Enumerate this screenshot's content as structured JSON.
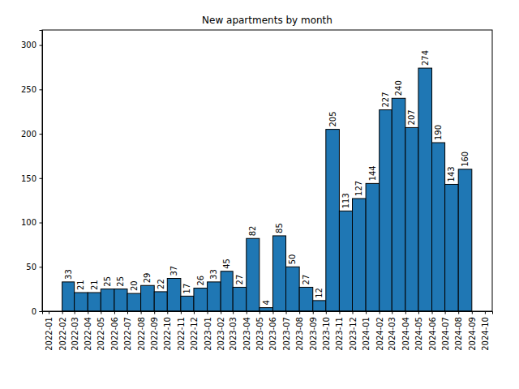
{
  "chart_data": {
    "type": "histogram",
    "title": "New apartments by month",
    "bins": [
      "2022-02",
      "2022-03",
      "2022-04",
      "2022-05",
      "2022-06",
      "2022-07",
      "2022-08",
      "2022-09",
      "2022-10",
      "2022-11",
      "2022-12",
      "2023-01",
      "2023-02",
      "2023-03",
      "2023-04",
      "2023-05",
      "2023-06",
      "2023-07",
      "2023-08",
      "2023-09",
      "2023-10",
      "2023-11",
      "2023-12",
      "2024-01",
      "2024-02",
      "2024-03",
      "2024-04",
      "2024-05",
      "2024-06",
      "2024-07",
      "2024-08",
      "2024-09"
    ],
    "values": [
      33,
      21,
      21,
      25,
      25,
      20,
      29,
      22,
      37,
      17,
      26,
      33,
      45,
      27,
      82,
      4,
      85,
      50,
      27,
      12,
      205,
      113,
      127,
      144,
      227,
      240,
      207,
      274,
      190,
      143,
      160
    ],
    "color": "#1f77b4",
    "xlim": [
      "2021-12-17",
      "2024-10-18"
    ],
    "xticks": [
      "2022-01",
      "2022-02",
      "2022-03",
      "2022-04",
      "2022-05",
      "2022-06",
      "2022-07",
      "2022-08",
      "2022-09",
      "2022-10",
      "2022-11",
      "2022-12",
      "2023-01",
      "2023-02",
      "2023-03",
      "2023-04",
      "2023-05",
      "2023-06",
      "2023-07",
      "2023-08",
      "2023-09",
      "2023-10",
      "2023-11",
      "2023-12",
      "2024-01",
      "2024-02",
      "2024-03",
      "2024-04",
      "2024-05",
      "2024-06",
      "2024-07",
      "2024-08",
      "2024-09",
      "2024-10"
    ],
    "ylim": [
      0,
      317
    ],
    "yticks": [
      0,
      50,
      100,
      150,
      200,
      250,
      300
    ],
    "grid": false,
    "data_labels": true
  }
}
